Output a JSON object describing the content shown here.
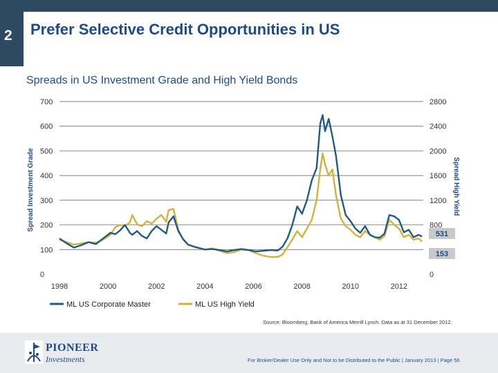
{
  "header": {
    "section_number": "2",
    "title": "Prefer Selective Credit Opportunities in US"
  },
  "subtitle": "Spreads in US Investment Grade and High Yield Bonds",
  "colors": {
    "ig": "#1f5b85",
    "hy": "#d4b13c",
    "brand": "#1d4a8a",
    "grid": "#555555"
  },
  "chart_data": {
    "type": "line",
    "title": "Spreads in US Investment Grade and High Yield Bonds",
    "ylabel": "Spread Investment Grade",
    "y2label": "Spread High Yield",
    "ylim": [
      0,
      700
    ],
    "y2lim": [
      0,
      2800
    ],
    "xlim": [
      1998,
      2013
    ],
    "grid": true,
    "legend_position": "bottom-left",
    "yticks": [
      "700",
      "600",
      "500",
      "400",
      "300",
      "200",
      "100",
      "0"
    ],
    "y2ticks": [
      "2800",
      "2400",
      "2000",
      "1600",
      "1200",
      "800",
      "0"
    ],
    "xticks": [
      "1998",
      "2000",
      "2002",
      "2004",
      "2006",
      "2008",
      "2010",
      "2012"
    ],
    "series": [
      {
        "name": "ML US Corporate Master",
        "axis": "left",
        "end_label": "153",
        "x": [
          1998.0,
          1998.3,
          1998.6,
          1998.9,
          1999.2,
          1999.5,
          1999.8,
          2000.1,
          2000.3,
          2000.5,
          2000.7,
          2000.9,
          2001.0,
          2001.2,
          2001.4,
          2001.6,
          2001.8,
          2002.0,
          2002.2,
          2002.4,
          2002.5,
          2002.7,
          2002.9,
          2003.1,
          2003.3,
          2003.6,
          2004.0,
          2004.3,
          2004.6,
          2004.9,
          2005.2,
          2005.5,
          2005.8,
          2006.1,
          2006.4,
          2006.7,
          2007.0,
          2007.2,
          2007.4,
          2007.6,
          2007.8,
          2008.0,
          2008.2,
          2008.4,
          2008.6,
          2008.75,
          2008.85,
          2008.95,
          2009.1,
          2009.25,
          2009.4,
          2009.6,
          2009.8,
          2010.0,
          2010.2,
          2010.4,
          2010.6,
          2010.8,
          2011.0,
          2011.2,
          2011.4,
          2011.6,
          2011.8,
          2012.0,
          2012.2,
          2012.4,
          2012.6,
          2012.8,
          2012.95
        ],
        "values": [
          145,
          125,
          108,
          118,
          130,
          122,
          145,
          168,
          162,
          178,
          200,
          168,
          160,
          175,
          155,
          145,
          175,
          195,
          180,
          165,
          210,
          235,
          175,
          142,
          120,
          110,
          100,
          102,
          98,
          92,
          98,
          102,
          98,
          92,
          95,
          98,
          96,
          112,
          145,
          200,
          275,
          245,
          300,
          380,
          430,
          610,
          645,
          580,
          630,
          560,
          480,
          320,
          240,
          215,
          185,
          168,
          195,
          160,
          150,
          148,
          165,
          240,
          235,
          220,
          170,
          180,
          150,
          160,
          153
        ]
      },
      {
        "name": "ML US High Yield",
        "axis": "right",
        "end_label": "531",
        "x": [
          1998.0,
          1998.3,
          1998.6,
          1998.9,
          1999.2,
          1999.5,
          1999.8,
          2000.1,
          2000.3,
          2000.5,
          2000.7,
          2000.9,
          2001.0,
          2001.2,
          2001.4,
          2001.6,
          2001.8,
          2002.0,
          2002.2,
          2002.4,
          2002.5,
          2002.7,
          2002.9,
          2003.1,
          2003.3,
          2003.6,
          2004.0,
          2004.3,
          2004.6,
          2004.9,
          2005.2,
          2005.5,
          2005.8,
          2006.1,
          2006.4,
          2006.7,
          2007.0,
          2007.2,
          2007.4,
          2007.6,
          2007.8,
          2008.0,
          2008.2,
          2008.4,
          2008.6,
          2008.75,
          2008.85,
          2008.95,
          2009.1,
          2009.25,
          2009.4,
          2009.6,
          2009.8,
          2010.0,
          2010.2,
          2010.4,
          2010.6,
          2010.8,
          2011.0,
          2011.2,
          2011.4,
          2011.6,
          2011.8,
          2012.0,
          2012.2,
          2012.4,
          2012.6,
          2012.8,
          2012.95
        ],
        "values": [
          560,
          520,
          480,
          500,
          520,
          510,
          560,
          640,
          760,
          800,
          780,
          840,
          960,
          810,
          780,
          860,
          820,
          900,
          960,
          850,
          1040,
          1060,
          720,
          560,
          480,
          440,
          400,
          420,
          380,
          340,
          360,
          400,
          390,
          340,
          300,
          280,
          280,
          320,
          440,
          560,
          700,
          600,
          740,
          880,
          1200,
          1700,
          1960,
          1780,
          1600,
          1700,
          1280,
          900,
          780,
          720,
          640,
          600,
          700,
          640,
          600,
          560,
          620,
          880,
          800,
          740,
          600,
          640,
          560,
          580,
          531
        ]
      }
    ],
    "end_labels": [
      "531",
      "153"
    ]
  },
  "legend": [
    "ML US Corporate Master",
    "ML US High Yield"
  ],
  "source": "Source: Bloomberg, Bank of America Merrill Lynch. Data as at 31 December 2012.",
  "footer": {
    "logo_name": "PIONEER",
    "logo_sub": "Investments",
    "disclaimer": "For Broker/Dealer Use Only and Not to be Distributed to the Public | January 2013 | Page 56"
  }
}
